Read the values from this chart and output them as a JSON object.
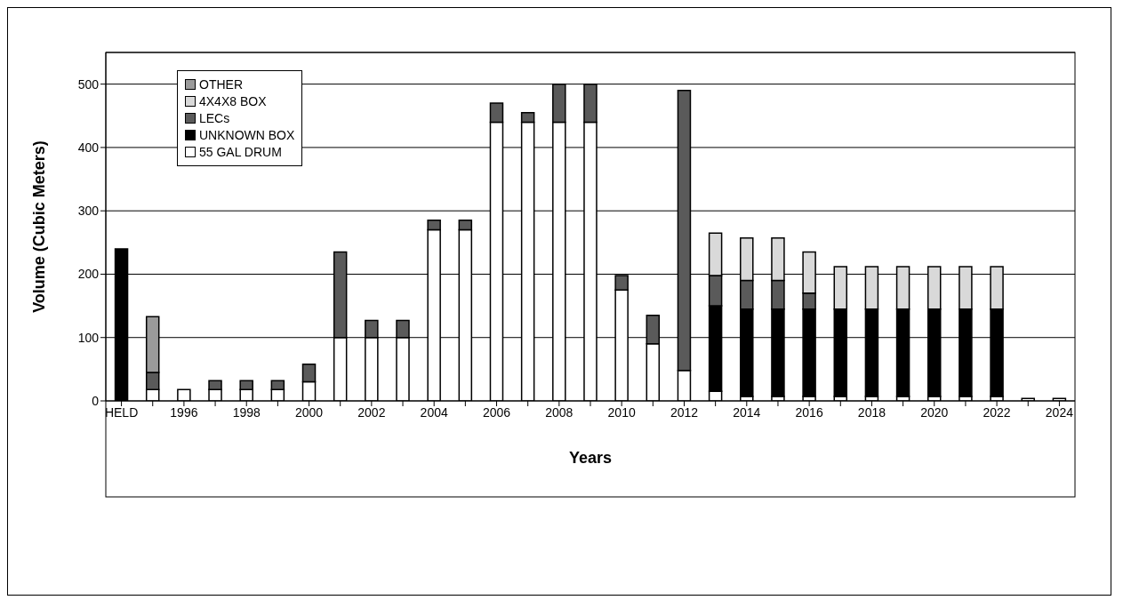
{
  "chart_data": {
    "type": "bar",
    "stacked": true,
    "xlabel": "Years",
    "ylabel": "Volume (Cubic Meters)",
    "categories": [
      "HELD",
      null,
      "1996",
      null,
      "1998",
      null,
      "2000",
      null,
      "2002",
      null,
      "2004",
      null,
      "2006",
      null,
      "2008",
      null,
      "2010",
      null,
      "2012",
      null,
      "2014",
      null,
      "2016",
      null,
      "2018",
      null,
      "2020",
      null,
      "2022",
      null,
      "2024"
    ],
    "series": [
      {
        "name": "55 GAL DRUM",
        "color": "#ffffff",
        "values": [
          null,
          18,
          18,
          18,
          18,
          18,
          30,
          100,
          100,
          100,
          270,
          270,
          440,
          440,
          440,
          440,
          175,
          90,
          48,
          15,
          7,
          7,
          7,
          7,
          7,
          7,
          7,
          7,
          7,
          4,
          4
        ]
      },
      {
        "name": "UNKNOWN BOX",
        "color": "#000000",
        "values": [
          240,
          null,
          null,
          null,
          null,
          null,
          null,
          null,
          null,
          null,
          null,
          null,
          null,
          null,
          null,
          null,
          null,
          null,
          null,
          135,
          138,
          138,
          138,
          138,
          138,
          138,
          138,
          138,
          138,
          null,
          null
        ]
      },
      {
        "name": "LECs",
        "color": "#5a5a5a",
        "values": [
          null,
          27,
          null,
          14,
          14,
          14,
          28,
          135,
          27,
          27,
          15,
          15,
          30,
          15,
          60,
          60,
          23,
          45,
          442,
          48,
          45,
          45,
          25,
          null,
          null,
          null,
          null,
          null,
          null,
          null,
          null
        ]
      },
      {
        "name": "4X4X8 BOX",
        "color": "#d9d9d9",
        "values": [
          null,
          null,
          null,
          null,
          null,
          null,
          null,
          null,
          null,
          null,
          null,
          null,
          null,
          null,
          null,
          null,
          null,
          null,
          null,
          67,
          67,
          67,
          65,
          67,
          67,
          67,
          67,
          67,
          67,
          null,
          null
        ]
      },
      {
        "name": "OTHER",
        "color": "#9a9a9a",
        "values": [
          null,
          88,
          null,
          null,
          null,
          null,
          null,
          null,
          null,
          null,
          null,
          null,
          null,
          null,
          null,
          null,
          null,
          null,
          null,
          null,
          null,
          null,
          null,
          null,
          null,
          null,
          null,
          null,
          null,
          null,
          null
        ]
      }
    ],
    "ylim": [
      0,
      550
    ],
    "yticks": [
      0,
      100,
      200,
      300,
      400,
      500
    ],
    "grid": "y",
    "legend": "top left"
  }
}
